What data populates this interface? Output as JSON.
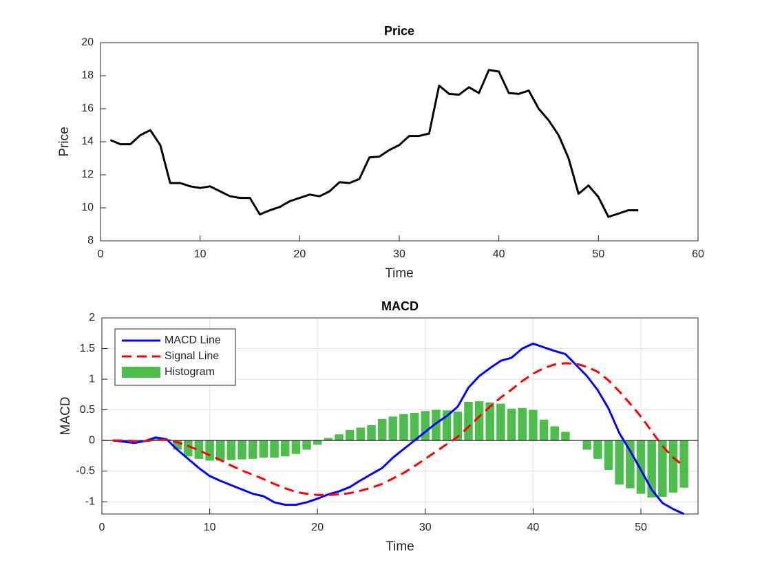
{
  "chart_data": [
    {
      "type": "line",
      "title": "Price",
      "xlabel": "Time",
      "ylabel": "Price",
      "x": [
        1,
        2,
        3,
        4,
        5,
        6,
        7,
        8,
        9,
        10,
        11,
        12,
        13,
        14,
        15,
        16,
        17,
        18,
        19,
        20,
        21,
        22,
        23,
        24,
        25,
        26,
        27,
        28,
        29,
        30,
        31,
        32,
        33,
        34,
        35,
        36,
        37,
        38,
        39,
        40,
        41,
        42,
        43,
        44,
        45,
        46,
        47,
        48,
        49,
        50,
        51,
        52,
        53,
        54
      ],
      "series": [
        {
          "name": "Price",
          "color": "#000000",
          "values": [
            14.1,
            13.85,
            13.85,
            14.4,
            14.7,
            13.8,
            11.5,
            11.5,
            11.3,
            11.2,
            11.3,
            11.0,
            10.7,
            10.6,
            10.6,
            9.6,
            9.85,
            10.05,
            10.4,
            10.6,
            10.8,
            10.7,
            11.0,
            11.55,
            11.5,
            11.75,
            13.05,
            13.1,
            13.5,
            13.8,
            14.35,
            14.35,
            14.5,
            17.4,
            16.9,
            16.85,
            17.3,
            16.95,
            18.35,
            18.25,
            16.95,
            16.9,
            17.1,
            16.0,
            15.3,
            14.4,
            13.0,
            10.85,
            11.35,
            10.65,
            9.45,
            9.65,
            9.85,
            9.85
          ]
        }
      ],
      "xlim": [
        0,
        60
      ],
      "ylim": [
        8,
        20
      ],
      "xticks": [
        0,
        10,
        20,
        30,
        40,
        50,
        60
      ],
      "yticks": [
        8,
        10,
        12,
        14,
        16,
        18,
        20
      ],
      "grid": false
    },
    {
      "type": "line",
      "title": "MACD",
      "xlabel": "Time",
      "ylabel": "MACD",
      "x": [
        1,
        2,
        3,
        4,
        5,
        6,
        7,
        8,
        9,
        10,
        11,
        12,
        13,
        14,
        15,
        16,
        17,
        18,
        19,
        20,
        21,
        22,
        23,
        24,
        25,
        26,
        27,
        28,
        29,
        30,
        31,
        32,
        33,
        34,
        35,
        36,
        37,
        38,
        39,
        40,
        41,
        42,
        43,
        44,
        45,
        46,
        47,
        48,
        49,
        50,
        51,
        52,
        53,
        54
      ],
      "series": [
        {
          "name": "MACD Line",
          "color": "#0000ff",
          "type": "line",
          "style": "solid",
          "values": [
            0,
            -0.02,
            -0.04,
            -0.01,
            0.05,
            0.02,
            -0.15,
            -0.3,
            -0.45,
            -0.58,
            -0.66,
            -0.73,
            -0.8,
            -0.87,
            -0.91,
            -1.01,
            -1.05,
            -1.05,
            -1.01,
            -0.95,
            -0.88,
            -0.83,
            -0.76,
            -0.65,
            -0.55,
            -0.45,
            -0.28,
            -0.14,
            0.0,
            0.14,
            0.28,
            0.4,
            0.55,
            0.86,
            1.05,
            1.18,
            1.3,
            1.35,
            1.5,
            1.58,
            1.52,
            1.46,
            1.41,
            1.23,
            1.05,
            0.82,
            0.52,
            0.12,
            -0.17,
            -0.48,
            -0.8,
            -1.02,
            -1.12,
            -1.2
          ]
        },
        {
          "name": "Signal Line",
          "color": "#ff0000",
          "type": "line",
          "style": "dashed",
          "values": [
            0,
            0,
            -0.01,
            -0.01,
            0.01,
            0.01,
            -0.03,
            -0.09,
            -0.16,
            -0.24,
            -0.32,
            -0.41,
            -0.49,
            -0.56,
            -0.63,
            -0.71,
            -0.78,
            -0.84,
            -0.87,
            -0.89,
            -0.89,
            -0.88,
            -0.86,
            -0.82,
            -0.77,
            -0.71,
            -0.62,
            -0.53,
            -0.42,
            -0.3,
            -0.18,
            -0.06,
            0.06,
            0.22,
            0.39,
            0.55,
            0.7,
            0.83,
            0.97,
            1.09,
            1.18,
            1.24,
            1.26,
            1.25,
            1.2,
            1.12,
            0.98,
            0.8,
            0.6,
            0.39,
            0.15,
            -0.09,
            -0.28,
            -0.42
          ]
        },
        {
          "name": "Histogram",
          "color": "#4dbe4d",
          "type": "bar",
          "values": [
            0,
            -0.01,
            -0.02,
            0,
            0.04,
            0.02,
            -0.15,
            -0.26,
            -0.3,
            -0.33,
            -0.33,
            -0.32,
            -0.31,
            -0.3,
            -0.28,
            -0.28,
            -0.26,
            -0.22,
            -0.15,
            -0.07,
            0.04,
            0.1,
            0.17,
            0.21,
            0.25,
            0.35,
            0.39,
            0.43,
            0.45,
            0.48,
            0.5,
            0.49,
            0.47,
            0.63,
            0.64,
            0.62,
            0.6,
            0.52,
            0.53,
            0.5,
            0.34,
            0.23,
            0.14,
            0,
            -0.15,
            -0.3,
            -0.48,
            -0.72,
            -0.78,
            -0.87,
            -0.93,
            -0.92,
            -0.85,
            -0.77
          ]
        }
      ],
      "xlim": [
        0,
        55.3
      ],
      "ylim": [
        -1.2,
        2
      ],
      "xticks": [
        0,
        10,
        20,
        30,
        40,
        50
      ],
      "yticks": [
        -1,
        -0.5,
        0,
        0.5,
        1,
        1.5,
        2
      ],
      "grid": true,
      "legend": "northwest"
    }
  ]
}
